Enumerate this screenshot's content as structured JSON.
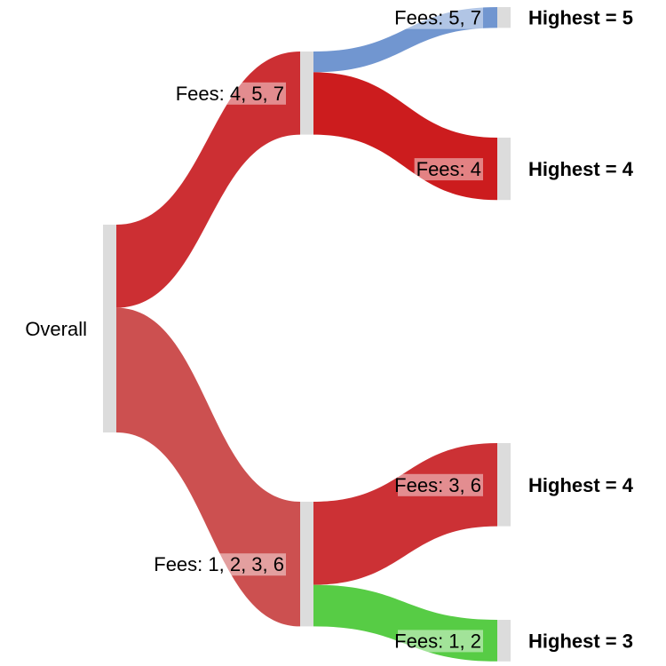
{
  "chart_data": {
    "type": "sankey",
    "nodes": [
      {
        "id": "overall",
        "label": "Overall"
      },
      {
        "id": "g457",
        "label": "Fees: 4, 5, 7"
      },
      {
        "id": "g1236",
        "label": "Fees: 1, 2, 3, 6"
      },
      {
        "id": "g57",
        "label": "Fees: 5, 7",
        "outcome": "Highest = 5"
      },
      {
        "id": "g4",
        "label": "Fees: 4",
        "outcome": "Highest = 4"
      },
      {
        "id": "g36",
        "label": "Fees: 3, 6",
        "outcome": "Highest = 4"
      },
      {
        "id": "g12",
        "label": "Fees: 1, 2",
        "outcome": "Highest = 3"
      }
    ],
    "links": [
      {
        "source": "overall",
        "target": "g457",
        "value": 4,
        "color": "#cc2f33"
      },
      {
        "source": "overall",
        "target": "g1236",
        "value": 6,
        "color": "#cc5050"
      },
      {
        "source": "g457",
        "target": "g57",
        "value": 1,
        "color": "#7196d0"
      },
      {
        "source": "g457",
        "target": "g4",
        "value": 3,
        "color": "#cc1c1e"
      },
      {
        "source": "g1236",
        "target": "g36",
        "value": 4,
        "color": "#cc3135"
      },
      {
        "source": "g1236",
        "target": "g12",
        "value": 2,
        "color": "#57cc45"
      }
    ]
  }
}
